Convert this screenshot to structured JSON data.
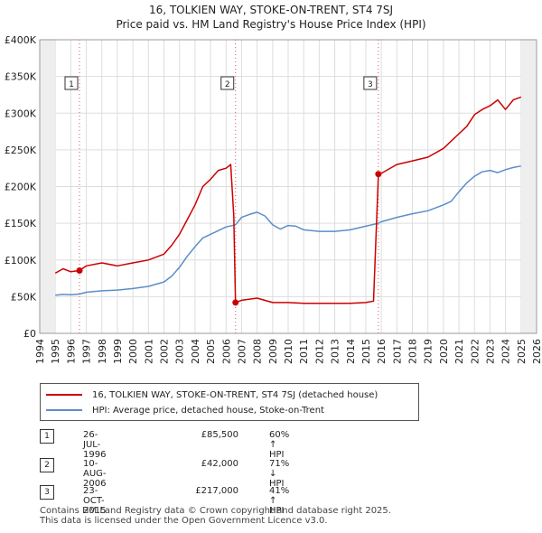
{
  "title_line1": "16, TOLKIEN WAY, STOKE-ON-TRENT, ST4 7SJ",
  "title_line2": "Price paid vs. HM Land Registry's House Price Index (HPI)",
  "chart_data": {
    "type": "line",
    "xlim": [
      1994,
      2026
    ],
    "ylim": [
      0,
      400000
    ],
    "x_ticks": [
      1994,
      1995,
      1996,
      1997,
      1998,
      1999,
      2000,
      2001,
      2002,
      2003,
      2004,
      2005,
      2006,
      2007,
      2008,
      2009,
      2010,
      2011,
      2012,
      2013,
      2014,
      2015,
      2016,
      2017,
      2018,
      2019,
      2020,
      2021,
      2022,
      2023,
      2024,
      2025,
      2026
    ],
    "y_ticks": [
      0,
      50000,
      100000,
      150000,
      200000,
      250000,
      300000,
      350000,
      400000
    ],
    "y_tick_labels": [
      "£0",
      "£50K",
      "£100K",
      "£150K",
      "£200K",
      "£250K",
      "£300K",
      "£350K",
      "£400K"
    ],
    "data_range": [
      1995.0,
      2025.0
    ],
    "series": [
      {
        "name": "16, TOLKIEN WAY, STOKE-ON-TRENT, ST4 7SJ (detached house)",
        "color": "#cc0000",
        "x": [
          1995.0,
          1995.5,
          1996.0,
          1996.56,
          1997.0,
          1998.0,
          1999.0,
          2000.0,
          2001.0,
          2002.0,
          2002.5,
          2003.0,
          2003.5,
          2004.0,
          2004.5,
          2005.0,
          2005.5,
          2006.0,
          2006.3,
          2006.5,
          2006.61,
          2007.0,
          2008.0,
          2009.0,
          2010.0,
          2011.0,
          2012.0,
          2013.0,
          2014.0,
          2015.0,
          2015.5,
          2015.81,
          2016.0,
          2017.0,
          2018.0,
          2019.0,
          2020.0,
          2021.0,
          2021.5,
          2022.0,
          2022.5,
          2023.0,
          2023.5,
          2024.0,
          2024.5,
          2025.0
        ],
        "y": [
          82000,
          88000,
          84000,
          85500,
          92000,
          96000,
          92000,
          96000,
          100000,
          108000,
          120000,
          135000,
          155000,
          175000,
          200000,
          210000,
          222000,
          225000,
          230000,
          160000,
          42000,
          45000,
          48000,
          42000,
          42000,
          41000,
          41000,
          41000,
          41000,
          42000,
          44000,
          217000,
          218000,
          230000,
          235000,
          240000,
          252000,
          272000,
          282000,
          298000,
          305000,
          310000,
          318000,
          305000,
          318000,
          322000
        ]
      },
      {
        "name": "HPI: Average price, detached house, Stoke-on-Trent",
        "color": "#5b8ec8",
        "x": [
          1995.0,
          1995.5,
          1996.0,
          1996.56,
          1997.0,
          1998.0,
          1999.0,
          2000.0,
          2001.0,
          2002.0,
          2002.5,
          2003.0,
          2003.5,
          2004.0,
          2004.5,
          2005.0,
          2005.5,
          2006.0,
          2006.61,
          2007.0,
          2007.5,
          2008.0,
          2008.5,
          2009.0,
          2009.5,
          2010.0,
          2010.5,
          2011.0,
          2011.5,
          2012.0,
          2013.0,
          2014.0,
          2015.0,
          2015.81,
          2016.0,
          2017.0,
          2018.0,
          2019.0,
          2020.0,
          2020.5,
          2021.0,
          2021.5,
          2022.0,
          2022.5,
          2023.0,
          2023.5,
          2024.0,
          2024.5,
          2025.0
        ],
        "y": [
          52000,
          53000,
          52500,
          53500,
          56000,
          58000,
          59000,
          61000,
          64000,
          70000,
          78000,
          90000,
          105000,
          118000,
          130000,
          135000,
          140000,
          145000,
          148000,
          158000,
          162000,
          165000,
          160000,
          148000,
          142000,
          147000,
          146000,
          141000,
          140000,
          139000,
          139000,
          141000,
          146000,
          150000,
          152000,
          158000,
          163000,
          167000,
          175000,
          180000,
          193000,
          205000,
          214000,
          220000,
          222000,
          219000,
          223000,
          226000,
          228000
        ]
      }
    ],
    "transactions": [
      {
        "num": "1",
        "x": 1996.56,
        "y": 85500
      },
      {
        "num": "2",
        "x": 2006.61,
        "y": 42000
      },
      {
        "num": "3",
        "x": 2015.81,
        "y": 217000
      }
    ]
  },
  "legend": {
    "red_label": "16, TOLKIEN WAY, STOKE-ON-TRENT, ST4 7SJ (detached house)",
    "blue_label": "HPI: Average price, detached house, Stoke-on-Trent"
  },
  "transactions_table": [
    {
      "num": "1",
      "date": "26-JUL-1996",
      "price": "£85,500",
      "hpi": "60% ↑ HPI"
    },
    {
      "num": "2",
      "date": "10-AUG-2006",
      "price": "£42,000",
      "hpi": "71% ↓ HPI"
    },
    {
      "num": "3",
      "date": "23-OCT-2015",
      "price": "£217,000",
      "hpi": "41% ↑ HPI"
    }
  ],
  "footer_line1": "Contains HM Land Registry data © Crown copyright and database right 2025.",
  "footer_line2": "This data is licensed under the Open Government Licence v3.0."
}
